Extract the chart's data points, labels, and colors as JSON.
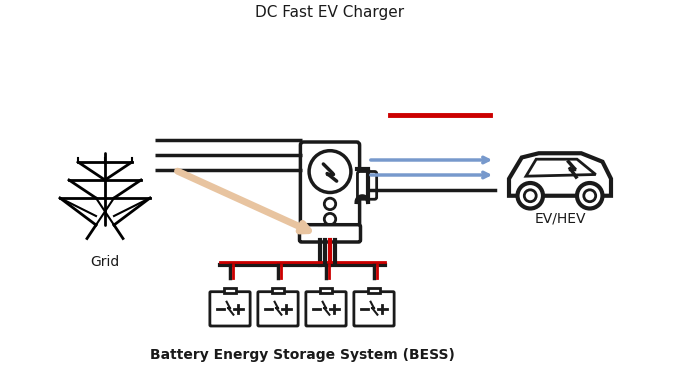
{
  "title": "DC Fast EV Charger",
  "bess_label": "Battery Energy Storage System (BESS)",
  "grid_label": "Grid",
  "ev_label": "EV/HEV",
  "bg_color": "#ffffff",
  "black": "#1a1a1a",
  "red": "#cc0000",
  "blue": "#7799cc",
  "orange": "#e8c4a0",
  "fig_width": 6.85,
  "fig_height": 3.8
}
